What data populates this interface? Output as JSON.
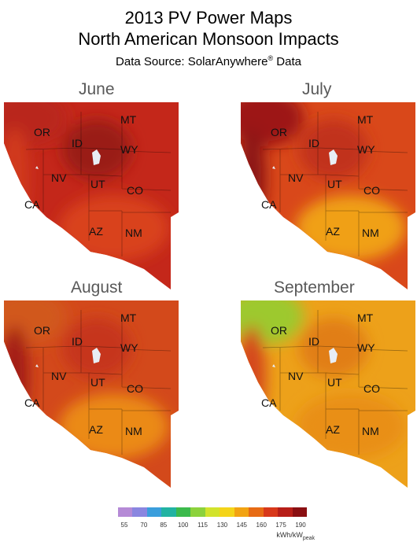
{
  "title": {
    "line1": "2013 PV Power Maps",
    "line2": "North American Monsoon Impacts",
    "source_prefix": "Data Source: SolarAnywhere",
    "source_mark": "®",
    "source_suffix": " Data"
  },
  "panels": [
    {
      "month": "June",
      "base": "#c4271a",
      "highlands": "#9a1a12",
      "southwest": "#d9431a",
      "coast": "#d13a1d",
      "north": "#b9251a"
    },
    {
      "month": "July",
      "base": "#d9481a",
      "highlands": "#c1301a",
      "southwest": "#f0a012",
      "coast": "#8c1414",
      "north": "#9d1717"
    },
    {
      "month": "August",
      "base": "#d3491b",
      "highlands": "#c6341a",
      "southwest": "#eb8a14",
      "coast": "#a31b14",
      "north": "#d1581a"
    },
    {
      "month": "September",
      "base": "#eda11a",
      "highlands": "#e17e17",
      "southwest": "#e98f17",
      "coast": "#d4461b",
      "north": "#9dc92e"
    }
  ],
  "states": [
    "OR",
    "MT",
    "ID",
    "WY",
    "NV",
    "UT",
    "CO",
    "CA",
    "AZ",
    "NM"
  ],
  "legend": {
    "ticks": [
      "55",
      "70",
      "85",
      "100",
      "115",
      "130",
      "145",
      "160",
      "175",
      "190"
    ],
    "unit_main": "kWh/kW",
    "unit_sub": "peak",
    "colors": [
      "#b58ad6",
      "#8a86e0",
      "#3a9edc",
      "#22b3a2",
      "#3cba4c",
      "#8cd23c",
      "#d2e32c",
      "#f4d419",
      "#f2a312",
      "#e76b14",
      "#d8381a",
      "#b71e18",
      "#8a0f12"
    ]
  }
}
